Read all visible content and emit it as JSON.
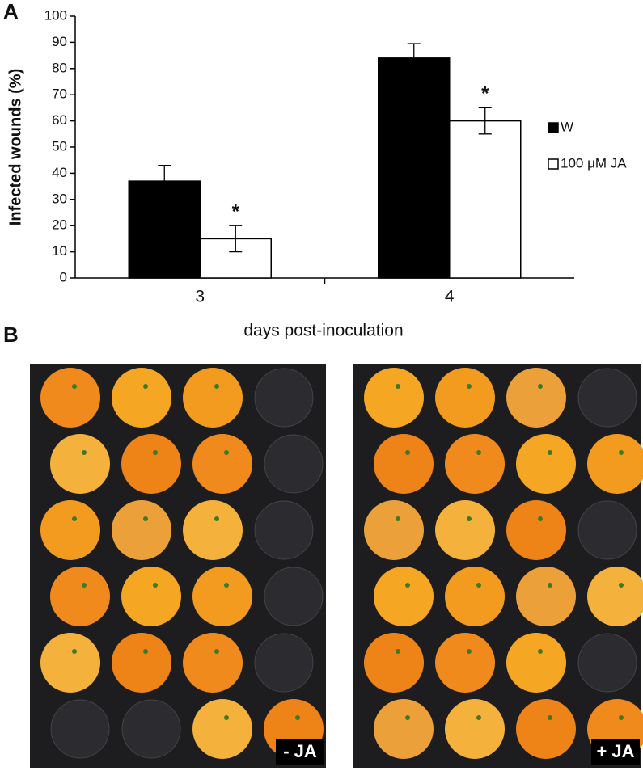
{
  "chart_data": {
    "type": "bar",
    "y_label": "Infected wounds (%)",
    "x_label": "days post-inoculation",
    "categories": [
      "3",
      "4"
    ],
    "series": [
      {
        "name": "W",
        "color": "#000000",
        "values": [
          37,
          84
        ],
        "errors": [
          6,
          5.5
        ]
      },
      {
        "name": "100 μM JA",
        "color": "#ffffff",
        "values": [
          15,
          60
        ],
        "errors": [
          5,
          5
        ]
      }
    ],
    "annotations": [
      "*",
      "*"
    ],
    "ylim": [
      0,
      100
    ],
    "yticks": [
      0,
      10,
      20,
      30,
      40,
      50,
      60,
      70,
      80,
      90,
      100
    ],
    "grid": false
  },
  "panel_labels": [
    "A",
    "B"
  ],
  "photo_labels": [
    "- JA",
    "+ JA"
  ]
}
